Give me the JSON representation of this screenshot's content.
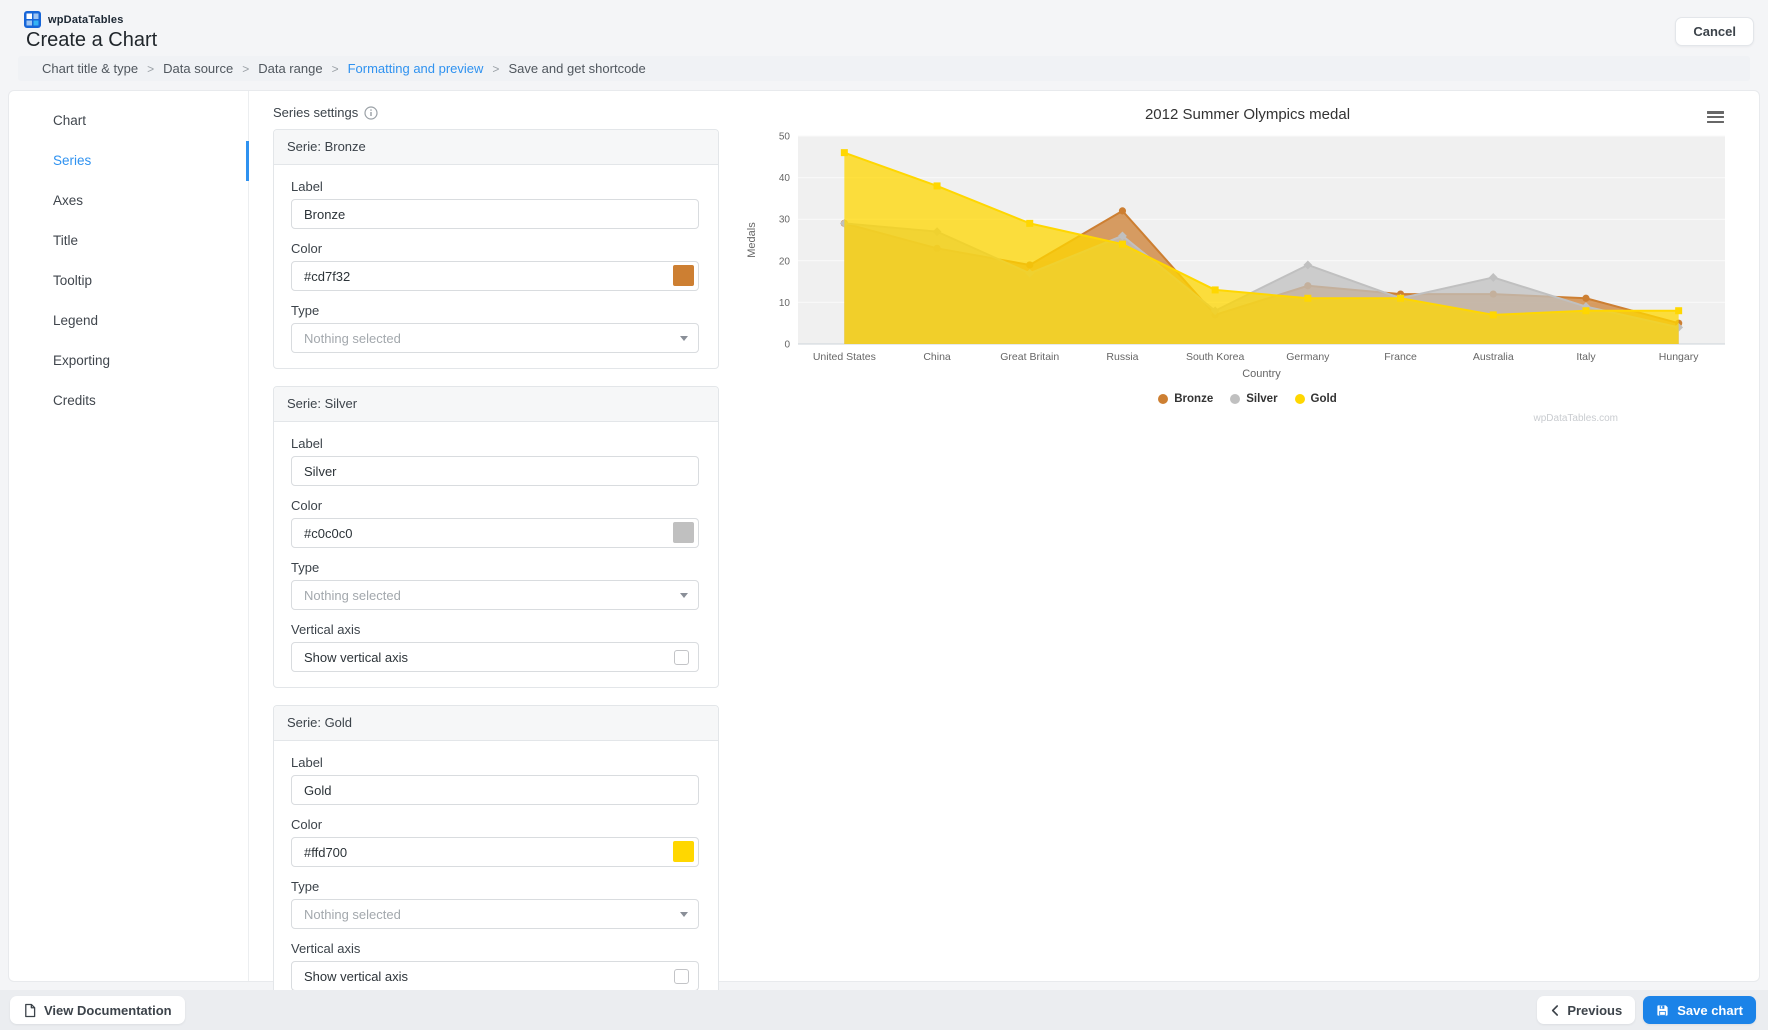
{
  "header": {
    "brand": "wpDataTables",
    "title": "Create a Chart",
    "cancel": "Cancel"
  },
  "breadcrumb": {
    "separator": ">",
    "items": [
      {
        "label": "Chart title & type",
        "active": false
      },
      {
        "label": "Data source",
        "active": false
      },
      {
        "label": "Data range",
        "active": false
      },
      {
        "label": "Formatting and preview",
        "active": true
      },
      {
        "label": "Save and get shortcode",
        "active": false
      }
    ]
  },
  "sidebar": {
    "items": [
      {
        "label": "Chart",
        "active": false
      },
      {
        "label": "Series",
        "active": true
      },
      {
        "label": "Axes",
        "active": false
      },
      {
        "label": "Title",
        "active": false
      },
      {
        "label": "Tooltip",
        "active": false
      },
      {
        "label": "Legend",
        "active": false
      },
      {
        "label": "Exporting",
        "active": false
      },
      {
        "label": "Credits",
        "active": false
      }
    ]
  },
  "series_settings": {
    "heading": "Series settings",
    "cards": [
      {
        "title": "Serie: Bronze",
        "label": {
          "caption": "Label",
          "value": "Bronze"
        },
        "color": {
          "caption": "Color",
          "value": "#cd7f32"
        },
        "type": {
          "caption": "Type",
          "placeholder": "Nothing selected"
        }
      },
      {
        "title": "Serie: Silver",
        "label": {
          "caption": "Label",
          "value": "Silver"
        },
        "color": {
          "caption": "Color",
          "value": "#c0c0c0"
        },
        "type": {
          "caption": "Type",
          "placeholder": "Nothing selected"
        },
        "vertical_axis": {
          "caption": "Vertical axis",
          "checkbox_label": "Show vertical axis",
          "checked": false
        }
      },
      {
        "title": "Serie: Gold",
        "label": {
          "caption": "Label",
          "value": "Gold"
        },
        "color": {
          "caption": "Color",
          "value": "#ffd700"
        },
        "type": {
          "caption": "Type",
          "placeholder": "Nothing selected"
        },
        "vertical_axis": {
          "caption": "Vertical axis",
          "checkbox_label": "Show vertical axis",
          "checked": false
        }
      }
    ]
  },
  "chart_data": {
    "type": "area",
    "title": "2012 Summer Olympics medal",
    "categories": [
      "United States",
      "China",
      "Great Britain",
      "Russia",
      "South Korea",
      "Germany",
      "France",
      "Australia",
      "Italy",
      "Hungary"
    ],
    "series": [
      {
        "name": "Bronze",
        "color": "#cd7f32",
        "marker": "circle",
        "values": [
          29,
          23,
          19,
          32,
          7,
          14,
          12,
          12,
          11,
          5
        ]
      },
      {
        "name": "Silver",
        "color": "#c0c0c0",
        "marker": "diamond",
        "values": [
          29,
          27,
          17,
          26,
          8,
          19,
          11,
          16,
          9,
          4
        ]
      },
      {
        "name": "Gold",
        "color": "#ffd700",
        "marker": "square",
        "values": [
          46,
          38,
          29,
          24,
          13,
          11,
          11,
          7,
          8,
          8
        ]
      }
    ],
    "xlabel": "Country",
    "ylabel": "Medals",
    "ylim": [
      0,
      50
    ],
    "ytick_step": 10,
    "grid": true,
    "legend_position": "bottom",
    "watermark": "wpDataTables.com"
  },
  "footer": {
    "view_documentation": "View Documentation",
    "previous": "Previous",
    "save_chart": "Save chart"
  },
  "colors": {
    "accent": "#2f92f0",
    "save_button": "#1b83e8",
    "bronze": "#cd7f32",
    "silver": "#c0c0c0",
    "gold": "#ffd700"
  }
}
